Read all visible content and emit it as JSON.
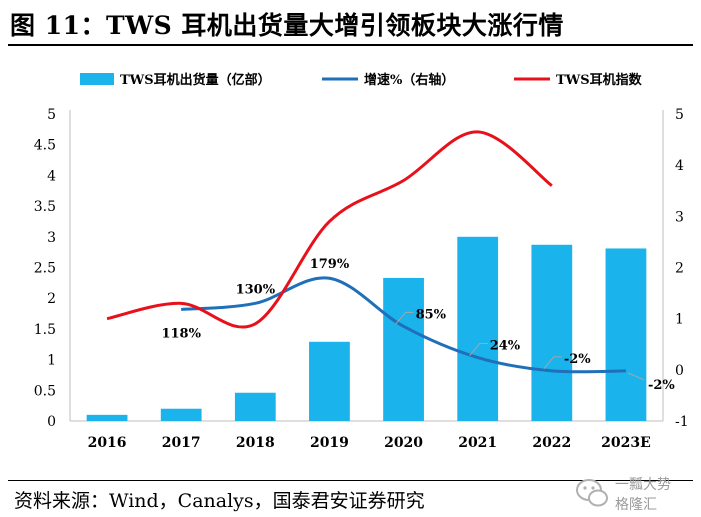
{
  "title": "图 11：TWS 耳机出货量大增引领板块大涨行情",
  "source": "资料来源：Wind，Canalys，国泰君安证券研究",
  "watermark": {
    "line1": "一瓢大势",
    "line2": "格隆汇"
  },
  "colors": {
    "bar": "#1ab3ec",
    "growth_line": "#1f6fba",
    "index_line": "#e8101a",
    "axis": "#bfbfbf",
    "label_leader": "#a6a6a6"
  },
  "chart_data": {
    "type": "bar",
    "categories": [
      "2016",
      "2017",
      "2018",
      "2019",
      "2020",
      "2021",
      "2022",
      "2023E"
    ],
    "series": [
      {
        "name": "TWS耳机出货量（亿部）",
        "type": "bar",
        "axis": "left",
        "values": [
          0.1,
          0.2,
          0.46,
          1.29,
          2.33,
          3.0,
          2.87,
          2.81
        ]
      },
      {
        "name": "增速%（右轴）",
        "type": "line",
        "axis": "right",
        "values": [
          null,
          1.18,
          1.3,
          1.79,
          0.85,
          0.24,
          -0.02,
          -0.02
        ],
        "labels": [
          null,
          "118%",
          "130%",
          "179%",
          "85%",
          "24%",
          "-2%",
          "-2%"
        ]
      },
      {
        "name": "TWS耳机指数",
        "type": "line",
        "axis": "right",
        "values": [
          1.0,
          1.3,
          0.9,
          2.9,
          3.7,
          4.65,
          3.6,
          null
        ]
      }
    ],
    "yleft": {
      "min": 0,
      "max": 5,
      "ticks": [
        "0",
        "0.5",
        "1",
        "1.5",
        "2",
        "2.5",
        "3",
        "3.5",
        "4",
        "4.5",
        "5"
      ]
    },
    "yright": {
      "min": -1,
      "max": 5,
      "ticks": [
        "-1",
        "0",
        "1",
        "2",
        "3",
        "4",
        "5"
      ]
    },
    "legend": "top",
    "grid": false
  }
}
